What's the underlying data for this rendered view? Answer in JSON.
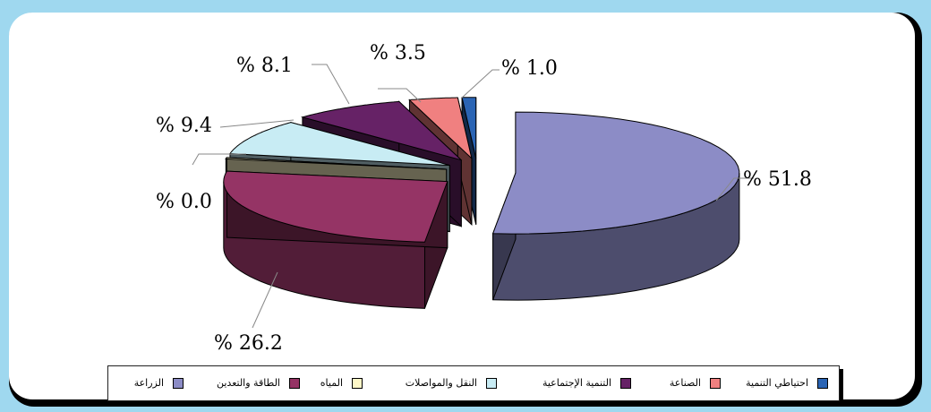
{
  "chart_data": {
    "type": "pie",
    "title": "",
    "slices": [
      {
        "name": "الزراعة",
        "label": "% 51.8",
        "value": 51.8,
        "color": "#8c8cc6"
      },
      {
        "name": "الطاقة والتعدين",
        "label": "% 26.2",
        "value": 26.2,
        "color": "#953465"
      },
      {
        "name": "المياه",
        "label": "% 0.0",
        "value": 0.0,
        "color": "#fff8c8"
      },
      {
        "name": "النقل والمواصلات",
        "label": "% 9.4",
        "value": 9.4,
        "color": "#c8ecf4"
      },
      {
        "name": "التنمية الإجتماعية",
        "label": "% 8.1",
        "value": 8.1,
        "color": "#662266"
      },
      {
        "name": "الصناعة",
        "label": "% 3.5",
        "value": 3.5,
        "color": "#f08080"
      },
      {
        "name": "احتياطي التنمية",
        "label": "% 1.0",
        "value": 1.0,
        "color": "#2a64b4"
      }
    ],
    "legend_position": "bottom"
  }
}
